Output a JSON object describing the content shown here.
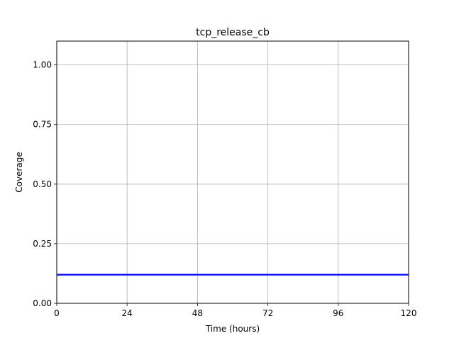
{
  "chart_data": {
    "type": "line",
    "title": "tcp_release_cb",
    "xlabel": "Time (hours)",
    "ylabel": "Coverage",
    "xlim": [
      0,
      120
    ],
    "ylim": [
      0,
      1.1
    ],
    "x_ticks": [
      0,
      24,
      48,
      72,
      96,
      120
    ],
    "x_tick_labels": [
      "0",
      "24",
      "48",
      "72",
      "96",
      "120"
    ],
    "y_ticks": [
      0,
      0.25,
      0.5,
      0.75,
      1.0
    ],
    "y_tick_labels": [
      "0.00",
      "0.25",
      "0.50",
      "0.75",
      "1.00"
    ],
    "grid": true,
    "legend": "none",
    "series": [
      {
        "color": "#0000ff",
        "x": [
          0,
          120
        ],
        "y": [
          0.12,
          0.12
        ]
      }
    ]
  }
}
